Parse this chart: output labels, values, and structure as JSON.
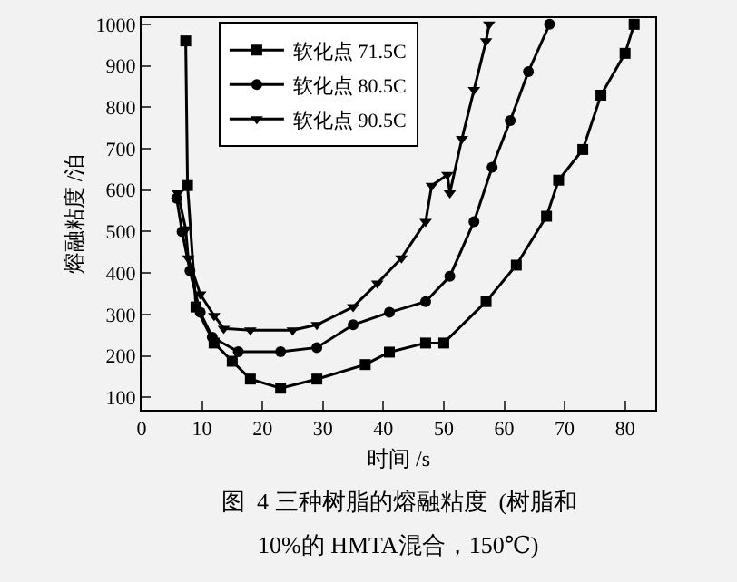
{
  "chart_data": {
    "type": "line",
    "xlabel": "时间 /s",
    "ylabel": "熔融粘度 /泊",
    "annotations": [
      "图  4 三种树脂的熔融粘度  (树脂和",
      "10%的 HMTA混合，150℃)"
    ],
    "xlim": [
      0,
      85
    ],
    "xticks": [
      0,
      10,
      20,
      30,
      40,
      50,
      60,
      70,
      80
    ],
    "ylim": [
      70,
      1015
    ],
    "yticks": [
      100,
      200,
      300,
      400,
      500,
      600,
      700,
      800,
      900,
      1000
    ],
    "grid": false,
    "legend": "top left",
    "series": [
      {
        "name": "软化点 71.5C",
        "color": "#000000",
        "marker": "square",
        "x": [
          7.3,
          7.6,
          9,
          12,
          15,
          18,
          23,
          29,
          37,
          41,
          47,
          50,
          57,
          62,
          67,
          69,
          73,
          76,
          80,
          81.5
        ],
        "values": [
          960,
          611,
          318,
          231,
          187,
          144,
          122,
          144,
          179,
          209,
          231,
          231,
          331,
          419,
          537,
          624,
          698,
          829,
          930,
          1000
        ]
      },
      {
        "name": "软化点 80.5C",
        "color": "#000000",
        "marker": "circle",
        "x": [
          5.8,
          6.7,
          8,
          9.7,
          11.7,
          16,
          23,
          29,
          35,
          41,
          47,
          51,
          55,
          58,
          61,
          64,
          67.5
        ],
        "values": [
          580,
          500,
          405,
          305,
          245,
          210,
          210,
          220,
          275,
          305,
          331,
          392,
          524,
          655,
          768,
          886,
          1000
        ]
      },
      {
        "name": "软化点 90.5C",
        "color": "#000000",
        "marker": "triangle",
        "x": [
          6,
          7.3,
          7.7,
          9.7,
          12,
          13.6,
          18,
          25,
          29,
          35,
          39,
          43,
          47,
          48,
          50.6,
          51,
          53,
          55,
          57,
          57.5
        ],
        "values": [
          593,
          506,
          436,
          349,
          297,
          266,
          262,
          262,
          275,
          318,
          375,
          436,
          524,
          611,
          637,
          593,
          724,
          842,
          960,
          1000
        ]
      }
    ]
  }
}
